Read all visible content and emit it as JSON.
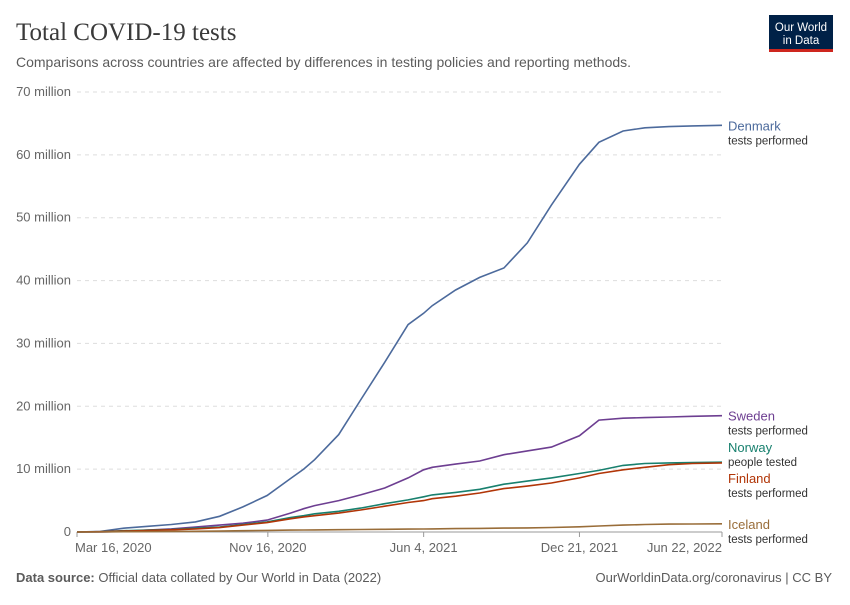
{
  "chart_data": {
    "type": "line",
    "title": "Total COVID-19 tests",
    "subtitle": "Comparisons across countries are affected by differences in testing policies and reporting methods.",
    "logo": [
      "Our World",
      "in Data"
    ],
    "source_label": "Data source:",
    "source": "Official data collated by Our World in Data (2022)",
    "footer_right": "OurWorldinData.org/coronavirus | CC BY",
    "x": [
      "2020-03-16",
      "2020-04-15",
      "2020-05-15",
      "2020-06-15",
      "2020-07-15",
      "2020-08-15",
      "2020-09-15",
      "2020-10-15",
      "2020-11-15",
      "2020-12-15",
      "2021-01-01",
      "2021-01-15",
      "2021-02-15",
      "2021-03-15",
      "2021-04-15",
      "2021-05-15",
      "2021-06-04",
      "2021-06-15",
      "2021-07-15",
      "2021-08-15",
      "2021-09-15",
      "2021-10-15",
      "2021-11-15",
      "2021-12-21",
      "2022-01-15",
      "2022-02-15",
      "2022-03-15",
      "2022-04-15",
      "2022-05-15",
      "2022-06-22"
    ],
    "xlim": [
      "2020-03-16",
      "2022-06-22"
    ],
    "xticks": [
      {
        "value": "2020-03-16",
        "label": "Mar 16, 2020"
      },
      {
        "value": "2020-11-16",
        "label": "Nov 16, 2020"
      },
      {
        "value": "2021-06-04",
        "label": "Jun 4, 2021"
      },
      {
        "value": "2021-12-21",
        "label": "Dec 21, 2021"
      },
      {
        "value": "2022-06-22",
        "label": "Jun 22, 2022"
      }
    ],
    "ylim": [
      0,
      70000000
    ],
    "yticks": [
      0,
      {
        "value": 10000000,
        "label": "10 million"
      },
      {
        "value": 20000000,
        "label": "20 million"
      },
      {
        "value": 30000000,
        "label": "30 million"
      },
      {
        "value": 40000000,
        "label": "40 million"
      },
      {
        "value": 50000000,
        "label": "50 million"
      },
      {
        "value": 60000000,
        "label": "60 million"
      },
      {
        "value": 70000000,
        "label": "70 million"
      }
    ],
    "grid": true,
    "series": [
      {
        "name": "Denmark",
        "metric": "tests performed",
        "color": "#4c6a9c",
        "values": [
          0,
          100000,
          600000,
          900000,
          1200000,
          1600000,
          2500000,
          4000000,
          5800000,
          8500000,
          10000000,
          11500000,
          15500000,
          21000000,
          27000000,
          33000000,
          34800000,
          36000000,
          38500000,
          40500000,
          42000000,
          46000000,
          52000000,
          58500000,
          62000000,
          63800000,
          64300000,
          64500000,
          64600000,
          64700000
        ]
      },
      {
        "name": "Sweden",
        "metric": "tests performed",
        "color": "#6d3e91",
        "values": [
          0,
          0,
          100000,
          300000,
          500000,
          800000,
          1100000,
          1400000,
          1900000,
          3000000,
          3700000,
          4200000,
          5000000,
          5900000,
          7000000,
          8600000,
          9900000,
          10300000,
          10800000,
          11300000,
          12300000,
          12900000,
          13500000,
          15300000,
          17800000,
          18100000,
          18200000,
          18300000,
          18400000,
          18500000
        ]
      },
      {
        "name": "Norway",
        "metric": "people tested",
        "color": "#18806e",
        "values": [
          0,
          50000,
          200000,
          300000,
          400000,
          600000,
          800000,
          1200000,
          1600000,
          2300000,
          2600000,
          2900000,
          3300000,
          3800000,
          4500000,
          5100000,
          5600000,
          5900000,
          6300000,
          6800000,
          7600000,
          8100000,
          8600000,
          9300000,
          9800000,
          10600000,
          10900000,
          11000000,
          11050000,
          11100000
        ]
      },
      {
        "name": "Finland",
        "metric": "tests performed",
        "color": "#b13507",
        "values": [
          0,
          50000,
          150000,
          250000,
          350000,
          500000,
          700000,
          1100000,
          1500000,
          2100000,
          2400000,
          2600000,
          3000000,
          3500000,
          4100000,
          4700000,
          5000000,
          5300000,
          5700000,
          6200000,
          6900000,
          7300000,
          7800000,
          8600000,
          9300000,
          9900000,
          10300000,
          10700000,
          10900000,
          11000000
        ]
      },
      {
        "name": "Iceland",
        "metric": "tests performed",
        "color": "#996d39",
        "values": [
          0,
          20000,
          50000,
          70000,
          90000,
          110000,
          150000,
          200000,
          250000,
          300000,
          320000,
          340000,
          370000,
          400000,
          430000,
          460000,
          480000,
          500000,
          540000,
          580000,
          620000,
          660000,
          720000,
          820000,
          950000,
          1100000,
          1200000,
          1250000,
          1280000,
          1300000
        ]
      }
    ]
  }
}
